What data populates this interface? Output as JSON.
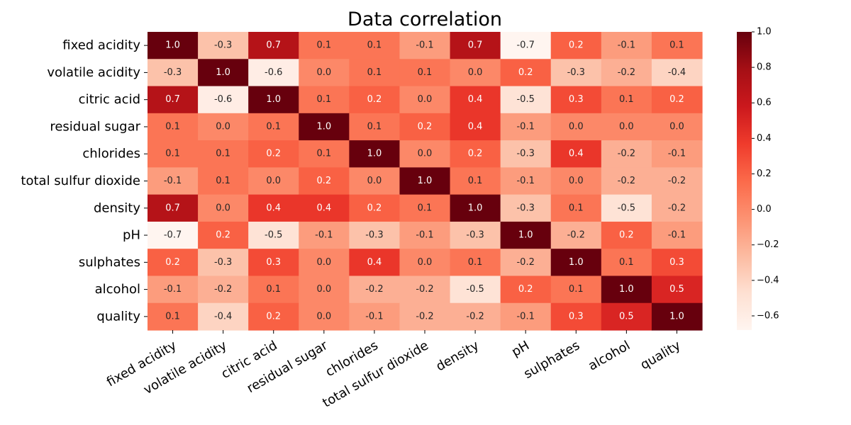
{
  "chart_data": {
    "type": "heatmap",
    "title": "Data correlation",
    "rows": [
      "fixed acidity",
      "volatile acidity",
      "citric acid",
      "residual sugar",
      "chlorides",
      "total sulfur dioxide",
      "density",
      "pH",
      "sulphates",
      "alcohol",
      "quality"
    ],
    "columns": [
      "fixed acidity",
      "volatile acidity",
      "citric acid",
      "residual sugar",
      "chlorides",
      "total sulfur dioxide",
      "density",
      "pH",
      "sulphates",
      "alcohol",
      "quality"
    ],
    "values": [
      [
        1.0,
        -0.3,
        0.7,
        0.1,
        0.1,
        -0.1,
        0.7,
        -0.7,
        0.2,
        -0.1,
        0.1
      ],
      [
        -0.3,
        1.0,
        -0.6,
        0.0,
        0.1,
        0.1,
        0.0,
        0.2,
        -0.3,
        -0.2,
        -0.4
      ],
      [
        0.7,
        -0.6,
        1.0,
        0.1,
        0.2,
        0.0,
        0.4,
        -0.5,
        0.3,
        0.1,
        0.2
      ],
      [
        0.1,
        0.0,
        0.1,
        1.0,
        0.1,
        0.2,
        0.4,
        -0.1,
        0.0,
        0.0,
        0.0
      ],
      [
        0.1,
        0.1,
        0.2,
        0.1,
        1.0,
        0.0,
        0.2,
        -0.3,
        0.4,
        -0.2,
        -0.1
      ],
      [
        -0.1,
        0.1,
        0.0,
        0.2,
        0.0,
        1.0,
        0.1,
        -0.1,
        0.0,
        -0.2,
        -0.2
      ],
      [
        0.7,
        0.0,
        0.4,
        0.4,
        0.2,
        0.1,
        1.0,
        -0.3,
        0.1,
        -0.5,
        -0.2
      ],
      [
        -0.7,
        0.2,
        -0.5,
        -0.1,
        -0.3,
        -0.1,
        -0.3,
        1.0,
        -0.2,
        0.2,
        -0.1
      ],
      [
        0.2,
        -0.3,
        0.3,
        0.0,
        0.4,
        0.0,
        0.1,
        -0.2,
        1.0,
        0.1,
        0.3
      ],
      [
        -0.1,
        -0.2,
        0.1,
        0.0,
        -0.2,
        -0.2,
        -0.5,
        0.2,
        0.1,
        1.0,
        0.5
      ],
      [
        0.1,
        -0.4,
        0.2,
        0.0,
        -0.1,
        -0.2,
        -0.2,
        -0.1,
        0.3,
        0.5,
        1.0
      ]
    ],
    "value_labels": [
      [
        "1.0",
        "-0.3",
        "0.7",
        "0.1",
        "0.1",
        "-0.1",
        "0.7",
        "-0.7",
        "0.2",
        "-0.1",
        "0.1"
      ],
      [
        "-0.3",
        "1.0",
        "-0.6",
        "0.0",
        "0.1",
        "0.1",
        "0.0",
        "0.2",
        "-0.3",
        "-0.2",
        "-0.4"
      ],
      [
        "0.7",
        "-0.6",
        "1.0",
        "0.1",
        "0.2",
        "0.0",
        "0.4",
        "-0.5",
        "0.3",
        "0.1",
        "0.2"
      ],
      [
        "0.1",
        "0.0",
        "0.1",
        "1.0",
        "0.1",
        "0.2",
        "0.4",
        "-0.1",
        "0.0",
        "0.0",
        "0.0"
      ],
      [
        "0.1",
        "0.1",
        "0.2",
        "0.1",
        "1.0",
        "0.0",
        "0.2",
        "-0.3",
        "0.4",
        "-0.2",
        "-0.1"
      ],
      [
        "-0.1",
        "0.1",
        "0.0",
        "0.2",
        "0.0",
        "1.0",
        "0.1",
        "-0.1",
        "0.0",
        "-0.2",
        "-0.2"
      ],
      [
        "0.7",
        "0.0",
        "0.4",
        "0.4",
        "0.2",
        "0.1",
        "1.0",
        "-0.3",
        "0.1",
        "-0.5",
        "-0.2"
      ],
      [
        "-0.7",
        "0.2",
        "-0.5",
        "-0.1",
        "-0.3",
        "-0.1",
        "-0.3",
        "1.0",
        "-0.2",
        "0.2",
        "-0.1"
      ],
      [
        "0.2",
        "-0.3",
        "0.3",
        "0.0",
        "0.4",
        "0.0",
        "0.1",
        "-0.2",
        "1.0",
        "0.1",
        "0.3"
      ],
      [
        "-0.1",
        "-0.2",
        "0.1",
        "0.0",
        "-0.2",
        "-0.2",
        "-0.5",
        "0.2",
        "0.1",
        "1.0",
        "0.5"
      ],
      [
        "0.1",
        "-0.4",
        "0.2",
        "0.0",
        "-0.1",
        "-0.2",
        "-0.2",
        "-0.1",
        "0.3",
        "0.5",
        "1.0"
      ]
    ],
    "colorbar": {
      "vmin": -0.68,
      "vmax": 1.0,
      "ticks": [
        1.0,
        0.8,
        0.6,
        0.4,
        0.2,
        0.0,
        -0.2,
        -0.4,
        -0.6
      ],
      "tick_labels": [
        "1.0",
        "0.8",
        "0.6",
        "0.4",
        "0.2",
        "0.0",
        "−0.2",
        "−0.4",
        "−0.6"
      ]
    },
    "colormap": "Reds",
    "colormap_stops": [
      "#fff5f0",
      "#fee0d2",
      "#fcbba1",
      "#fc9272",
      "#fb6a4a",
      "#ef3b2c",
      "#cb181d",
      "#a50f15",
      "#67000d"
    ],
    "grid": false
  }
}
